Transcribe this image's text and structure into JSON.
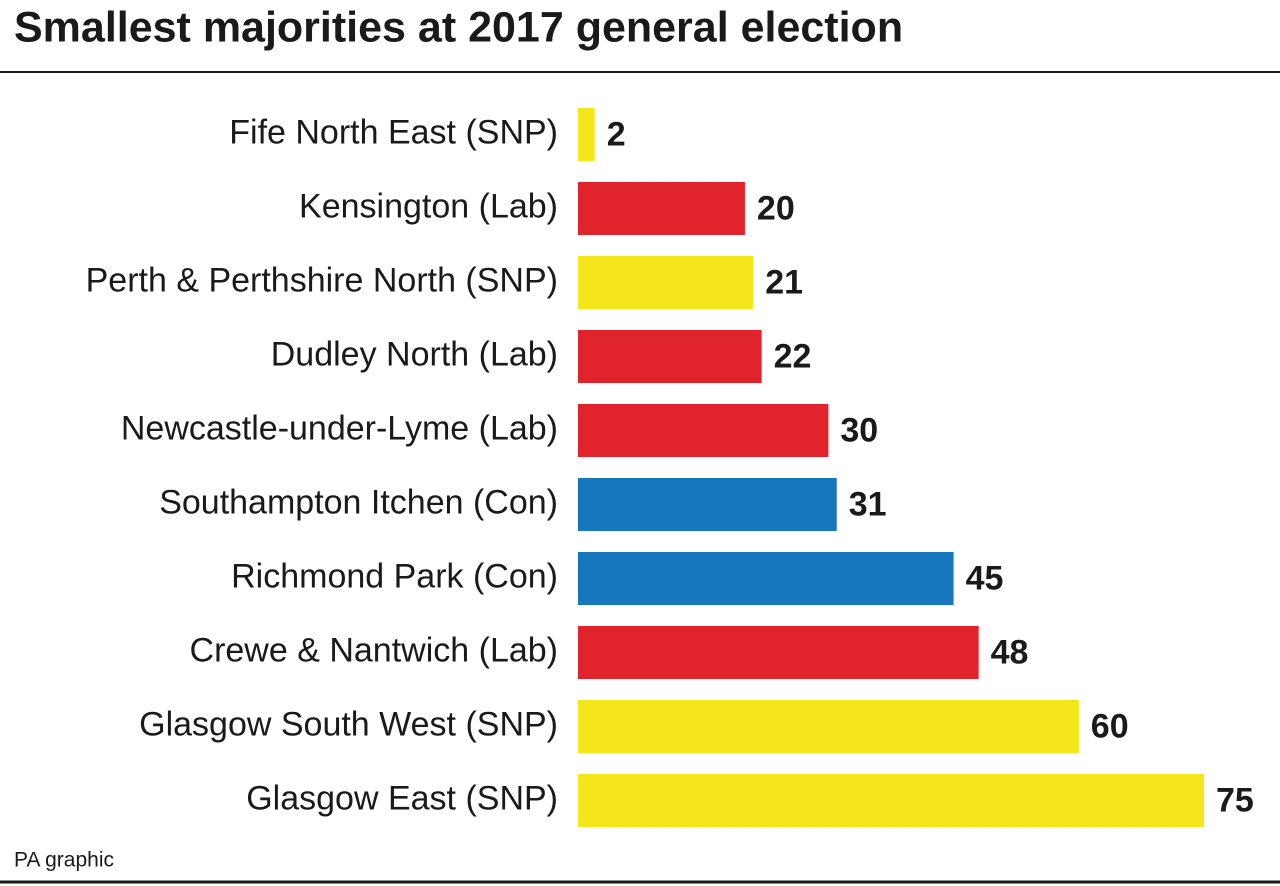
{
  "chart_data": {
    "type": "bar",
    "orientation": "horizontal",
    "title": "Smallest majorities at 2017 general election",
    "categories": [
      "Fife North East (SNP)",
      "Kensington (Lab)",
      "Perth & Perthshire North (SNP)",
      "Dudley North (Lab)",
      "Newcastle-under-Lyme (Lab)",
      "Southampton Itchen (Con)",
      "Richmond Park (Con)",
      "Crewe & Nantwich (Lab)",
      "Glasgow South West (SNP)",
      "Glasgow East (SNP)"
    ],
    "values": [
      2,
      20,
      21,
      22,
      30,
      31,
      45,
      48,
      60,
      75
    ],
    "colors": [
      "#f5e51b",
      "#e1242b",
      "#f5e51b",
      "#e1242b",
      "#e1242b",
      "#1777bc",
      "#1777bc",
      "#e1242b",
      "#f5e51b",
      "#f5e51b"
    ],
    "source": "PA graphic"
  }
}
